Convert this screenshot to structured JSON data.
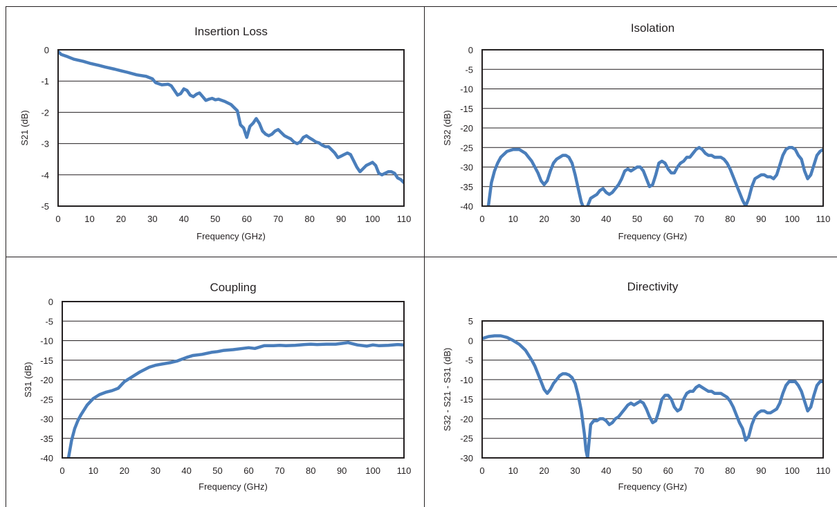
{
  "chart_data": [
    {
      "type": "line",
      "title": "Insertion Loss",
      "xlabel": "Frequency (GHz)",
      "ylabel": "S21 (dB)",
      "xlim": [
        0,
        110
      ],
      "ylim": [
        -5,
        0
      ],
      "xticks": [
        0,
        10,
        20,
        30,
        40,
        50,
        60,
        70,
        80,
        90,
        100,
        110
      ],
      "yticks": [
        0,
        -1,
        -2,
        -3,
        -4,
        -5
      ],
      "grid": "horizontal",
      "line_color": "#4a7ebb",
      "x": [
        0,
        1,
        3,
        5,
        8,
        10,
        13,
        15,
        18,
        20,
        22,
        25,
        28,
        30,
        31,
        33,
        35,
        36,
        37,
        38,
        39,
        40,
        41,
        42,
        43,
        44,
        45,
        46,
        47,
        48,
        49,
        50,
        51,
        53,
        55,
        56,
        57,
        58,
        59,
        60,
        61,
        62,
        63,
        64,
        65,
        66,
        67,
        68,
        69,
        70,
        71,
        72,
        73,
        74,
        75,
        76,
        77,
        78,
        79,
        80,
        81,
        82,
        83,
        84,
        85,
        86,
        87,
        88,
        89,
        90,
        91,
        92,
        93,
        94,
        95,
        96,
        97,
        98,
        99,
        100,
        101,
        102,
        103,
        104,
        105,
        106,
        107,
        108,
        109,
        110
      ],
      "y": [
        -0.05,
        -0.15,
        -0.22,
        -0.3,
        -0.37,
        -0.43,
        -0.5,
        -0.55,
        -0.62,
        -0.67,
        -0.72,
        -0.8,
        -0.85,
        -0.93,
        -1.05,
        -1.12,
        -1.1,
        -1.15,
        -1.3,
        -1.45,
        -1.4,
        -1.25,
        -1.3,
        -1.45,
        -1.5,
        -1.42,
        -1.38,
        -1.5,
        -1.62,
        -1.58,
        -1.55,
        -1.6,
        -1.58,
        -1.65,
        -1.75,
        -1.85,
        -1.95,
        -2.4,
        -2.5,
        -2.8,
        -2.45,
        -2.35,
        -2.2,
        -2.35,
        -2.6,
        -2.7,
        -2.75,
        -2.7,
        -2.6,
        -2.55,
        -2.65,
        -2.75,
        -2.8,
        -2.85,
        -2.95,
        -3.0,
        -2.95,
        -2.8,
        -2.75,
        -2.82,
        -2.88,
        -2.95,
        -2.98,
        -3.05,
        -3.1,
        -3.1,
        -3.2,
        -3.3,
        -3.45,
        -3.4,
        -3.35,
        -3.3,
        -3.35,
        -3.55,
        -3.75,
        -3.9,
        -3.8,
        -3.7,
        -3.65,
        -3.6,
        -3.7,
        -3.95,
        -4.0,
        -3.95,
        -3.9,
        -3.9,
        -3.95,
        -4.1,
        -4.15,
        -4.25
      ]
    },
    {
      "type": "line",
      "title": "Isolation",
      "xlabel": "Frequency (GHz)",
      "ylabel": "S32 (dB)",
      "xlim": [
        0,
        110
      ],
      "ylim": [
        -40,
        0
      ],
      "xticks": [
        0,
        10,
        20,
        30,
        40,
        50,
        60,
        70,
        80,
        90,
        100,
        110
      ],
      "yticks": [
        0,
        -5,
        -10,
        -15,
        -20,
        -25,
        -30,
        -35,
        -40
      ],
      "grid": "horizontal",
      "line_color": "#4a7ebb",
      "x": [
        2,
        3,
        4,
        5,
        6,
        8,
        10,
        12,
        14,
        16,
        18,
        19,
        20,
        21,
        22,
        23,
        24,
        26,
        27,
        28,
        29,
        30,
        31,
        32,
        33,
        34,
        35,
        36,
        37,
        38,
        39,
        40,
        41,
        42,
        43,
        44,
        45,
        46,
        47,
        48,
        49,
        50,
        51,
        52,
        53,
        54,
        55,
        56,
        57,
        58,
        59,
        60,
        61,
        62,
        63,
        64,
        65,
        66,
        67,
        68,
        69,
        70,
        71,
        72,
        73,
        74,
        75,
        76,
        77,
        78,
        79,
        80,
        81,
        82,
        83,
        84,
        85,
        86,
        87,
        88,
        89,
        90,
        91,
        92,
        93,
        94,
        95,
        96,
        97,
        98,
        99,
        100,
        101,
        102,
        103,
        104,
        105,
        106,
        107,
        108,
        109,
        110
      ],
      "y": [
        -40,
        -34,
        -31,
        -29,
        -27.5,
        -26,
        -25.5,
        -25.5,
        -26.5,
        -28.5,
        -31.5,
        -33.5,
        -34.5,
        -33.5,
        -31,
        -29,
        -28,
        -27,
        -27,
        -27.5,
        -29,
        -32,
        -35.5,
        -39,
        -41,
        -40,
        -38,
        -37.5,
        -37,
        -36,
        -35.5,
        -36.5,
        -37,
        -36.5,
        -35.5,
        -34.5,
        -33,
        -31,
        -30.5,
        -31,
        -30.5,
        -30,
        -30,
        -31,
        -33,
        -35,
        -34.5,
        -32,
        -29,
        -28.5,
        -29,
        -30.5,
        -31.5,
        -31.5,
        -30,
        -29,
        -28.5,
        -27.5,
        -27.5,
        -26.5,
        -25.5,
        -25,
        -25.5,
        -26.5,
        -27,
        -27,
        -27.5,
        -27.5,
        -27.5,
        -28,
        -29,
        -30.5,
        -32.5,
        -34.5,
        -36.5,
        -38.5,
        -40,
        -38,
        -35,
        -33,
        -32.5,
        -32,
        -32,
        -32.5,
        -32.5,
        -33,
        -32,
        -29.5,
        -27,
        -25.5,
        -25,
        -25,
        -25.5,
        -27,
        -28,
        -31,
        -33,
        -32,
        -29.5,
        -27,
        -26,
        -25.5
      ]
    },
    {
      "type": "line",
      "title": "Coupling",
      "xlabel": "Frequency (GHz)",
      "ylabel": "S31 (dB)",
      "xlim": [
        0,
        110
      ],
      "ylim": [
        -40,
        0
      ],
      "xticks": [
        0,
        10,
        20,
        30,
        40,
        50,
        60,
        70,
        80,
        90,
        100,
        110
      ],
      "yticks": [
        0,
        -5,
        -10,
        -15,
        -20,
        -25,
        -30,
        -35,
        -40
      ],
      "grid": "horizontal",
      "line_color": "#4a7ebb",
      "x": [
        2,
        3,
        4,
        5,
        6,
        8,
        10,
        12,
        14,
        16,
        18,
        20,
        22,
        25,
        28,
        30,
        32,
        35,
        37,
        40,
        42,
        45,
        48,
        50,
        52,
        55,
        58,
        60,
        62,
        65,
        68,
        70,
        72,
        75,
        78,
        80,
        82,
        85,
        88,
        90,
        92,
        95,
        98,
        100,
        102,
        105,
        108,
        110
      ],
      "y": [
        -40,
        -35.5,
        -32.5,
        -30.5,
        -29,
        -26.5,
        -24.8,
        -23.8,
        -23.2,
        -22.8,
        -22.2,
        -20.5,
        -19.5,
        -18,
        -16.8,
        -16.3,
        -16,
        -15.6,
        -15.2,
        -14.3,
        -13.8,
        -13.5,
        -13,
        -12.8,
        -12.5,
        -12.3,
        -12,
        -11.8,
        -12,
        -11.3,
        -11.3,
        -11.2,
        -11.3,
        -11.2,
        -11,
        -10.9,
        -11,
        -10.9,
        -10.9,
        -10.7,
        -10.5,
        -11.1,
        -11.4,
        -11.1,
        -11.3,
        -11.2,
        -11,
        -11.1
      ]
    },
    {
      "type": "line",
      "title": "Directivity",
      "xlabel": "Frequency (GHz)",
      "ylabel": "S32 - S21 - S31 (dB)",
      "xlim": [
        0,
        110
      ],
      "ylim": [
        -30,
        5
      ],
      "xticks": [
        0,
        10,
        20,
        30,
        40,
        50,
        60,
        70,
        80,
        90,
        100,
        110
      ],
      "yticks": [
        5,
        0,
        -5,
        -10,
        -15,
        -20,
        -25,
        -30
      ],
      "grid": "horizontal",
      "line_color": "#4a7ebb",
      "x": [
        0,
        2,
        4,
        6,
        8,
        10,
        12,
        14,
        16,
        17,
        18,
        19,
        20,
        21,
        22,
        23,
        24,
        25,
        26,
        27,
        28,
        29,
        30,
        31,
        32,
        33,
        33.5,
        34,
        35,
        36,
        37,
        38,
        39,
        40,
        41,
        42,
        43,
        44,
        45,
        46,
        47,
        48,
        49,
        50,
        51,
        52,
        53,
        54,
        55,
        56,
        57,
        58,
        59,
        60,
        61,
        62,
        63,
        64,
        65,
        66,
        67,
        68,
        69,
        70,
        71,
        72,
        73,
        74,
        75,
        76,
        77,
        78,
        79,
        80,
        81,
        82,
        83,
        84,
        85,
        86,
        87,
        88,
        89,
        90,
        91,
        92,
        93,
        94,
        95,
        96,
        97,
        98,
        99,
        100,
        101,
        102,
        103,
        104,
        105,
        106,
        107,
        108,
        109,
        110
      ],
      "y": [
        0.5,
        1,
        1.2,
        1.2,
        0.8,
        0,
        -1,
        -2.5,
        -5,
        -6.5,
        -8.5,
        -10.5,
        -12.5,
        -13.5,
        -12.5,
        -11,
        -10,
        -9,
        -8.5,
        -8.5,
        -8.8,
        -9.5,
        -11,
        -14,
        -18,
        -24,
        -28,
        -30,
        -21.5,
        -20.5,
        -20.5,
        -20,
        -20,
        -20.5,
        -21.5,
        -21,
        -20,
        -19.5,
        -18.5,
        -17.5,
        -16.5,
        -16,
        -16.5,
        -16,
        -15.5,
        -16,
        -17.5,
        -19.5,
        -21,
        -20.5,
        -18,
        -15,
        -14,
        -14,
        -15,
        -17,
        -18,
        -17.5,
        -15,
        -13.5,
        -13,
        -13,
        -12,
        -11.5,
        -12,
        -12.5,
        -13,
        -13,
        -13.5,
        -13.5,
        -13.5,
        -14,
        -14.5,
        -15.5,
        -17,
        -19,
        -21,
        -22.5,
        -25.5,
        -24.5,
        -21.5,
        -19.5,
        -18.5,
        -18,
        -18,
        -18.5,
        -18.5,
        -18,
        -17.5,
        -16,
        -13.5,
        -11.5,
        -10.5,
        -10.5,
        -10.5,
        -11.5,
        -13,
        -15.5,
        -18,
        -17,
        -14,
        -11.5,
        -10.5,
        -10.5
      ]
    }
  ]
}
